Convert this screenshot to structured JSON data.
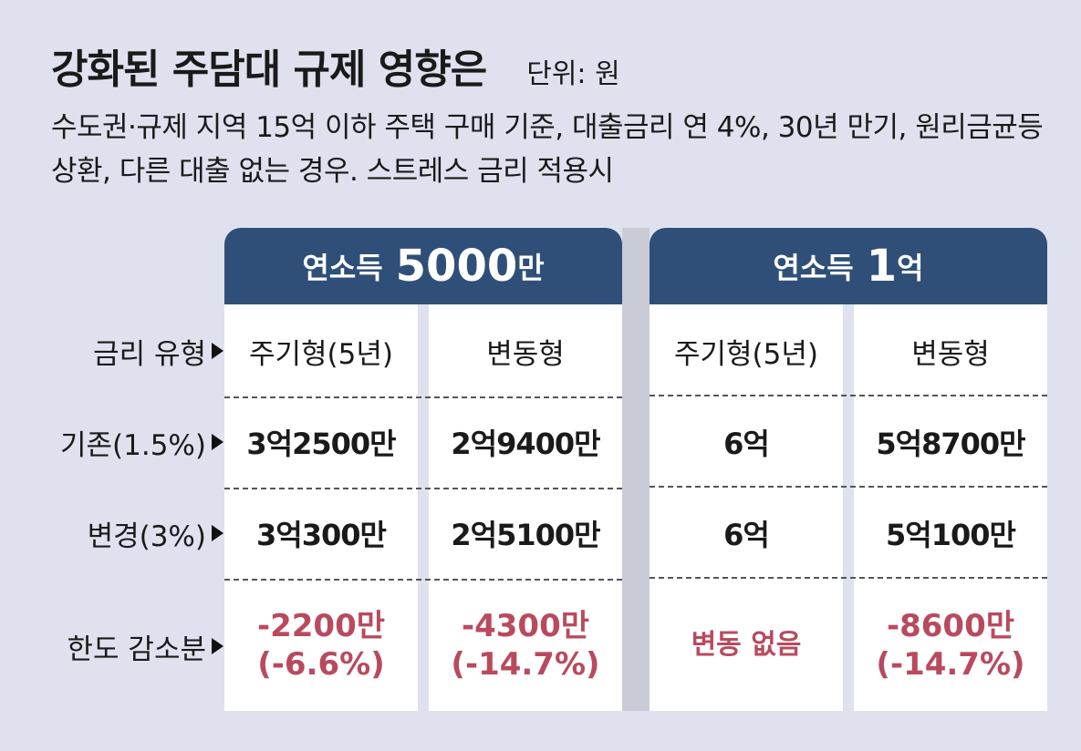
{
  "title": "강화된 주담대 규제 영향은",
  "unit": "단위: 원",
  "subtitle": "수도권·규제 지역 15억 이하 주택 구매 기준, 대출금리 연 4%, 30년 만기, 원리금균등상환, 다른 대출 없는 경우. 스트레스 금리 적용시",
  "chart_data": {
    "type": "table",
    "groups": [
      {
        "label": "연소득",
        "value": "5000",
        "suffix": "만"
      },
      {
        "label": "연소득",
        "value": "1",
        "suffix": "억"
      }
    ],
    "row_labels": [
      "금리 유형",
      "기존(1.5%)",
      "변경(3%)",
      "한도 감소분"
    ],
    "columns": [
      {
        "type": "주기형(5년)",
        "before": "3억2500만",
        "after": "3억300만",
        "diff": "-2200만",
        "diff_pct": "(-6.6%)"
      },
      {
        "type": "변동형",
        "before": "2억9400만",
        "after": "2억5100만",
        "diff": "-4300만",
        "diff_pct": "(-14.7%)"
      },
      {
        "type": "주기형(5년)",
        "before": "6억",
        "after": "6억",
        "diff": "변동 없음",
        "diff_pct": ""
      },
      {
        "type": "변동형",
        "before": "5억8700만",
        "after": "5억100만",
        "diff": "-8600만",
        "diff_pct": "(-14.7%)"
      }
    ],
    "highlight_color": "#b94a5e",
    "header_color": "#2f4f78"
  }
}
